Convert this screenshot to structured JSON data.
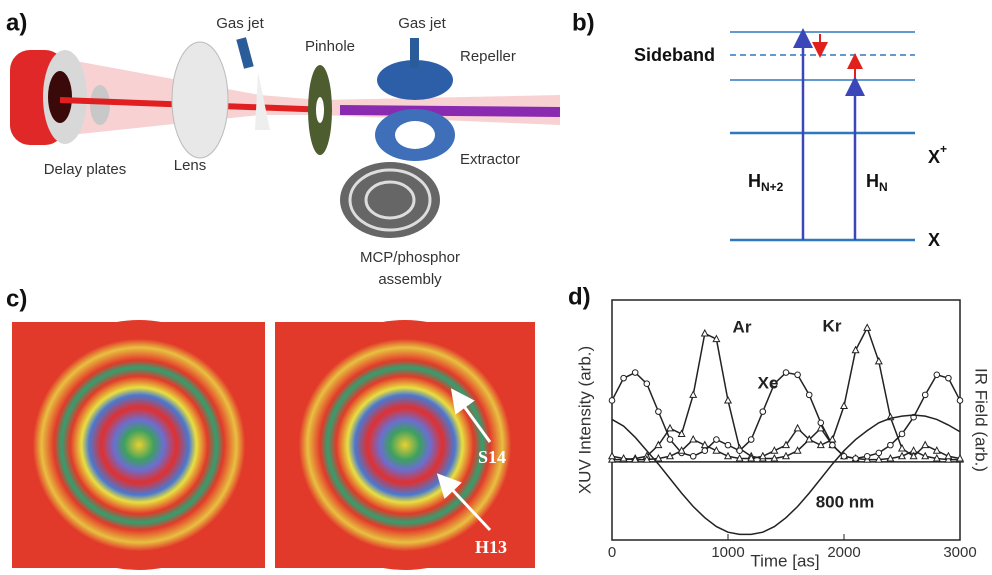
{
  "panels": {
    "a": {
      "label": "a)",
      "gas_jet_1": "Gas jet",
      "pinhole": "Pinhole",
      "gas_jet_2": "Gas jet",
      "repeller": "Repeller",
      "delay_plates": "Delay plates",
      "lens": "Lens",
      "extractor": "Extractor",
      "mcp_line1": "MCP/phosphor",
      "mcp_line2": "assembly"
    },
    "b": {
      "label": "b)",
      "sideband": "Sideband",
      "ion_level": {
        "text": "X",
        "superscript": "+"
      },
      "ground_level": "X",
      "harmonic_n2": {
        "text": "H",
        "subscript": "N+2"
      },
      "harmonic_n": {
        "text": "H",
        "subscript": "N"
      }
    },
    "c": {
      "label": "c)",
      "arrow_top": "S14",
      "arrow_bottom": "H13"
    }
  },
  "chart_data": {
    "type": "line",
    "panel_label": "d)",
    "x_label": "Time [as]",
    "y_label": "XUV Intensity (arb.)",
    "y2_label": "IR Field (arb.)",
    "x": [
      0,
      100,
      200,
      300,
      400,
      500,
      600,
      700,
      800,
      900,
      1000,
      1100,
      1200,
      1300,
      1400,
      1500,
      1600,
      1700,
      1800,
      1900,
      2000,
      2100,
      2200,
      2300,
      2400,
      2500,
      2600,
      2700,
      2800,
      2900,
      3000
    ],
    "xlim": [
      0,
      3000
    ],
    "xticks": [
      0,
      1000,
      2000,
      3000
    ],
    "ylim": [
      -0.7,
      1.45
    ],
    "y2lim": [
      -0.7,
      1.45
    ],
    "series": [
      {
        "name": "Ar",
        "color": "#222222",
        "marker": "triangle",
        "values": [
          0.02,
          0.02,
          0.03,
          0.05,
          0.15,
          0.3,
          0.25,
          0.6,
          1.15,
          1.1,
          0.55,
          0.12,
          0.05,
          0.03,
          0.03,
          0.05,
          0.1,
          0.2,
          0.3,
          0.15,
          0.05,
          0.03,
          0.02,
          0.02,
          0.03,
          0.05,
          0.1,
          0.05,
          0.03,
          0.02,
          0.02
        ]
      },
      {
        "name": "Xe",
        "color": "#222222",
        "marker": "circle",
        "values": [
          0.55,
          0.75,
          0.8,
          0.7,
          0.45,
          0.2,
          0.08,
          0.05,
          0.1,
          0.2,
          0.15,
          0.1,
          0.2,
          0.45,
          0.7,
          0.8,
          0.78,
          0.6,
          0.35,
          0.15,
          0.05,
          0.03,
          0.05,
          0.08,
          0.15,
          0.25,
          0.4,
          0.6,
          0.78,
          0.75,
          0.55
        ]
      },
      {
        "name": "Kr",
        "color": "#222222",
        "marker": "triangle",
        "values": [
          0.05,
          0.03,
          0.02,
          0.02,
          0.03,
          0.05,
          0.1,
          0.2,
          0.15,
          0.1,
          0.05,
          0.03,
          0.03,
          0.05,
          0.1,
          0.15,
          0.3,
          0.2,
          0.15,
          0.2,
          0.5,
          1.0,
          1.2,
          0.9,
          0.4,
          0.12,
          0.05,
          0.15,
          0.1,
          0.05,
          0.03
        ]
      },
      {
        "name": "800 nm",
        "color": "#222222",
        "axis": "y2",
        "values": [
          0.38,
          0.32,
          0.22,
          0.1,
          -0.02,
          -0.15,
          -0.28,
          -0.4,
          -0.5,
          -0.58,
          -0.63,
          -0.65,
          -0.65,
          -0.63,
          -0.58,
          -0.5,
          -0.4,
          -0.28,
          -0.15,
          -0.02,
          0.1,
          0.2,
          0.28,
          0.35,
          0.39,
          0.41,
          0.42,
          0.41,
          0.38,
          0.33,
          0.27
        ]
      }
    ]
  }
}
